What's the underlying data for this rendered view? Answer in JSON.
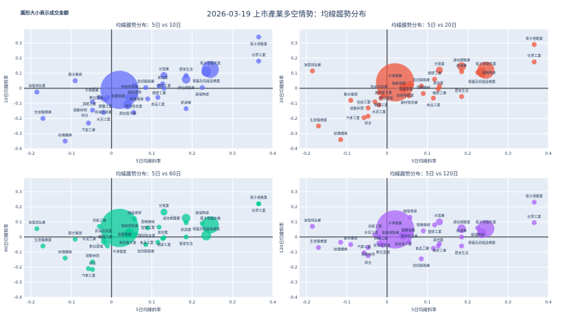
{
  "title": "2026-03-19 上市產業多空情勢：均線趨勢分布",
  "note": "圓形大小表示成交金額",
  "chart_data": [
    {
      "type": "scatter",
      "title": "均線趨勢分布：5日 vs 10日",
      "xlabel": "5日均線斜率",
      "ylabel": "10日均線斜率",
      "key": "y10",
      "color": "#636efa"
    },
    {
      "type": "scatter",
      "title": "均線趨勢分布：5日 vs 20日",
      "xlabel": "5日均線斜率",
      "ylabel": "20日均線斜率",
      "key": "y20",
      "color": "#ef553b"
    },
    {
      "type": "scatter",
      "title": "均線趨勢分布：5日 vs 60日",
      "xlabel": "5日均線斜率",
      "ylabel": "60日均線斜率",
      "key": "y60",
      "color": "#00cc96"
    },
    {
      "type": "scatter",
      "title": "均線趨勢分布：5日 vs 120日",
      "xlabel": "5日均線斜率",
      "ylabel": "120日均線斜率",
      "key": "y120",
      "color": "#ab63fa"
    }
  ],
  "axes": {
    "xlim": [
      -0.217,
      0.4
    ],
    "ylim": [
      -0.4,
      0.39
    ],
    "xticks": [
      -0.2,
      -0.1,
      0,
      0.1,
      0.2,
      0.3,
      0.4
    ],
    "yticks": [
      -0.4,
      -0.3,
      -0.2,
      -0.1,
      0,
      0.1,
      0.2,
      0.3
    ],
    "grid": true
  },
  "points": [
    {
      "name": "電子通路業",
      "x": 0.365,
      "y10": 0.34,
      "y20": 0.29,
      "y60": 0.22,
      "y120": 0.23,
      "size": 1
    },
    {
      "name": "化學工業",
      "x": 0.365,
      "y10": 0.18,
      "y20": 0.175,
      "y60": 0.22,
      "y120": 0.095,
      "size": 1
    },
    {
      "name": "電子零組件業",
      "x": 0.245,
      "y10": 0.125,
      "y20": 0.12,
      "y60": 0.08,
      "y120": 0.055,
      "size": 12
    },
    {
      "name": "電腦及週邊設備業",
      "x": 0.235,
      "y10": 0.11,
      "y20": 0.105,
      "y60": 0.01,
      "y120": 0.025,
      "size": 4
    },
    {
      "name": "玻璃陶瓷",
      "x": 0.225,
      "y10": 0.005,
      "y20": 0.105,
      "y60": 0.09,
      "y120": 0.06,
      "size": 1
    },
    {
      "name": "居家生活",
      "x": 0.185,
      "y10": 0.085,
      "y20": -0.055,
      "y60": 0,
      "y120": -0.06,
      "size": 1
    },
    {
      "name": "通信網路業",
      "x": 0.185,
      "y10": 0.06,
      "y20": 0.145,
      "y60": 0.125,
      "y120": 0.055,
      "size": 3
    },
    {
      "name": "航運業",
      "x": 0.185,
      "y10": -0.135,
      "y20": 0.11,
      "y60": 0.095,
      "y120": 0,
      "size": 1
    },
    {
      "name": "光電業",
      "x": 0.13,
      "y10": 0.085,
      "y20": 0.12,
      "y60": 0.165,
      "y120": 0.1,
      "size": 2
    },
    {
      "name": "其他業",
      "x": 0.127,
      "y10": 0.03,
      "y20": -0.005,
      "y60": -0.01,
      "y120": -0.06,
      "size": 1
    },
    {
      "name": "塑膠工業",
      "x": 0.118,
      "y10": 0.015,
      "y20": 0.06,
      "y60": 0.065,
      "y120": 0.08,
      "size": 1
    },
    {
      "name": "橡膠工業",
      "x": 0.13,
      "y10": 0.0,
      "y20": 0.015,
      "y60": -0.005,
      "y120": -0.045,
      "size": 1
    },
    {
      "name": "食品工業",
      "x": 0.115,
      "y10": -0.06,
      "y20": -0.065,
      "y60": -0.035,
      "y120": -0.075,
      "size": 1
    },
    {
      "name": "電機機械",
      "x": 0.09,
      "y10": -0.07,
      "y20": -0.035,
      "y60": 0.06,
      "y120": 0.04,
      "size": 1
    },
    {
      "name": "資訊服務業",
      "x": 0.085,
      "y10": 0.005,
      "y20": 0.015,
      "y60": -0.05,
      "y120": -0.145,
      "size": 1
    },
    {
      "name": "綠能環保",
      "x": 0.057,
      "y10": 0.02,
      "y20": 0.035,
      "y60": 0.12,
      "y120": 0.13,
      "size": 1
    },
    {
      "name": "建材營造業",
      "x": 0.055,
      "y10": -0.16,
      "y20": -0.05,
      "y60": 0.01,
      "y120": -0.035,
      "size": 1
    },
    {
      "name": "電器電纜",
      "x": 0.06,
      "y10": -0.05,
      "y20": 0.02,
      "y60": 0.02,
      "y120": 0.035,
      "size": 1
    },
    {
      "name": "金融保險業",
      "x": 0.045,
      "y10": -0.06,
      "y20": 0.01,
      "y60": 0.03,
      "y120": 0.03,
      "size": 3
    },
    {
      "name": "其他電子業",
      "x": 0.04,
      "y10": -0.11,
      "y20": 0.0,
      "y60": 0.02,
      "y120": 0.01,
      "size": 3
    },
    {
      "name": "半導體業",
      "x": 0.02,
      "y10": -0.01,
      "y20": 0.04,
      "y60": 0.06,
      "y120": 0.05,
      "size": 60
    },
    {
      "name": "鋼鐵工業",
      "x": -0.015,
      "y10": -0.075,
      "y20": -0.065,
      "y60": -0.04,
      "y120": -0.05,
      "size": 1
    },
    {
      "name": "數位雲端",
      "x": -0.01,
      "y10": -0.06,
      "y20": -0.05,
      "y60": -0.06,
      "y120": -0.055,
      "size": 1
    },
    {
      "name": "貿易百貨業",
      "x": -0.02,
      "y10": -0.07,
      "y20": -0.03,
      "y60": -0.03,
      "y120": -0.04,
      "size": 1
    },
    {
      "name": "水泥工業",
      "x": -0.02,
      "y10": -0.16,
      "y20": -0.11,
      "y60": -0.01,
      "y120": 0.0,
      "size": 1
    },
    {
      "name": "造紙工業",
      "x": -0.03,
      "y10": -0.06,
      "y20": -0.09,
      "y60": 0.07,
      "y120": 0.015,
      "size": 1
    },
    {
      "name": "運動休閒",
      "x": -0.047,
      "y10": -0.09,
      "y20": -0.13,
      "y60": -0.165,
      "y120": -0.07,
      "size": 1
    },
    {
      "name": "綜合",
      "x": -0.047,
      "y10": -0.145,
      "y20": -0.185,
      "y60": -0.215,
      "y120": -0.125,
      "size": 1
    },
    {
      "name": "汽車工業",
      "x": -0.057,
      "y10": -0.23,
      "y20": -0.195,
      "y60": -0.21,
      "y120": -0.105,
      "size": 1
    },
    {
      "name": "觀光餐旅",
      "x": -0.09,
      "y10": 0.05,
      "y20": -0.08,
      "y60": -0.015,
      "y120": -0.05,
      "size": 1
    },
    {
      "name": "紡織纖維",
      "x": -0.115,
      "y10": -0.35,
      "y20": -0.34,
      "y60": -0.14,
      "y120": -0.035,
      "size": 1
    },
    {
      "name": "生技醫療業",
      "x": -0.17,
      "y10": -0.2,
      "y20": -0.25,
      "y60": -0.06,
      "y120": -0.07,
      "size": 1
    },
    {
      "name": "油電燃氣業",
      "x": -0.185,
      "y10": -0.025,
      "y20": 0.115,
      "y60": 0.055,
      "y120": 0.07,
      "size": 1
    }
  ]
}
